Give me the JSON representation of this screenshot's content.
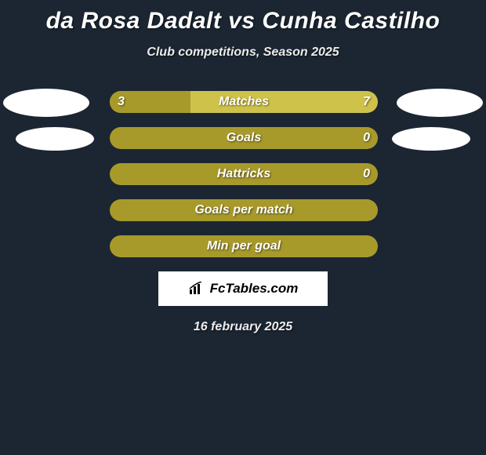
{
  "title": "da Rosa Dadalt vs Cunha Castilho",
  "subtitle": "Club competitions, Season 2025",
  "date": "16 february 2025",
  "logo_text": "FcTables.com",
  "colors": {
    "background": "#1b2632",
    "bar_primary": "#a89a2a",
    "bar_secondary": "#cfc24a",
    "avatar": "#ffffff",
    "text": "#ffffff"
  },
  "typography": {
    "title_fontsize": 30,
    "subtitle_fontsize": 16,
    "bar_label_fontsize": 16,
    "italic": true,
    "weight": 800
  },
  "rows": [
    {
      "label": "Matches",
      "left_value": "3",
      "right_value": "7",
      "left_pct": 30,
      "track_color": "#cfc24a",
      "left_color": "#a89a2a",
      "show_avatars": "row1"
    },
    {
      "label": "Goals",
      "left_value": "",
      "right_value": "0",
      "left_pct": 100,
      "track_color": "#a89a2a",
      "left_color": "#a89a2a",
      "show_avatars": "row2"
    },
    {
      "label": "Hattricks",
      "left_value": "",
      "right_value": "0",
      "left_pct": 100,
      "track_color": "#a89a2a",
      "left_color": "#a89a2a",
      "show_avatars": "none"
    },
    {
      "label": "Goals per match",
      "left_value": "",
      "right_value": "",
      "left_pct": 100,
      "track_color": "#a89a2a",
      "left_color": "#a89a2a",
      "show_avatars": "none"
    },
    {
      "label": "Min per goal",
      "left_value": "",
      "right_value": "",
      "left_pct": 100,
      "track_color": "#a89a2a",
      "left_color": "#a89a2a",
      "show_avatars": "none"
    }
  ]
}
